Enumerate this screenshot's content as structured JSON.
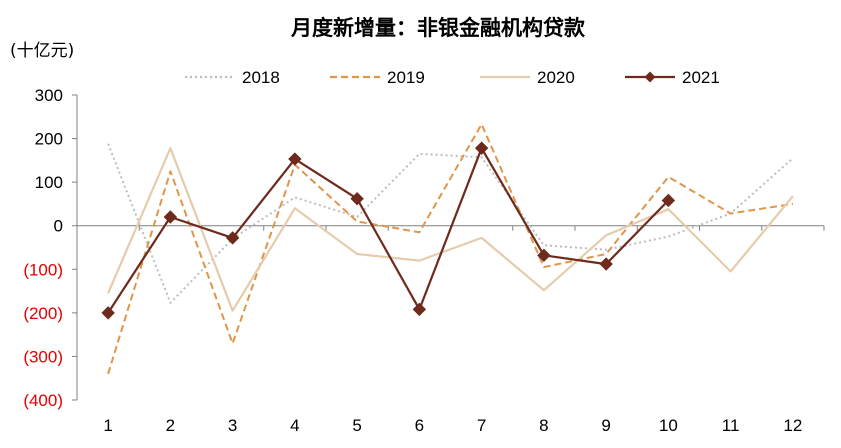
{
  "chart_data": {
    "type": "line",
    "title": "月度新增量：非银金融机构贷款",
    "ylabel": "(十亿元)",
    "xlabel": "",
    "categories": [
      "1",
      "2",
      "3",
      "4",
      "5",
      "6",
      "7",
      "8",
      "9",
      "10",
      "11",
      "12"
    ],
    "ylim": [
      -400,
      300
    ],
    "yticks": [
      300,
      200,
      100,
      0,
      -100,
      -200,
      -300,
      -400
    ],
    "ytick_labels": [
      "300",
      "200",
      "100",
      "0",
      "(100)",
      "(200)",
      "(300)",
      "(400)"
    ],
    "negative_tick_color": "#e60000",
    "positive_tick_color": "#000000",
    "legend_position": "top",
    "series": [
      {
        "name": "2018",
        "color": "#bdbdbd",
        "style": "dotted",
        "marker": "none",
        "values": [
          188,
          -177,
          -30,
          65,
          20,
          165,
          157,
          -45,
          -55,
          -25,
          28,
          155
        ]
      },
      {
        "name": "2019",
        "color": "#e0954a",
        "style": "dashed",
        "marker": "none",
        "values": [
          -340,
          125,
          -270,
          140,
          10,
          -15,
          233,
          -95,
          -65,
          112,
          28,
          50
        ]
      },
      {
        "name": "2020",
        "color": "#e5ccad",
        "style": "solid",
        "marker": "none",
        "values": [
          -155,
          178,
          -195,
          40,
          -65,
          -80,
          -28,
          -148,
          -22,
          38,
          -105,
          68
        ]
      },
      {
        "name": "2021",
        "color": "#6e2a1c",
        "style": "solid",
        "marker": "diamond",
        "values": [
          -200,
          20,
          -28,
          153,
          62,
          -192,
          178,
          -68,
          -88,
          58,
          null,
          null
        ]
      }
    ]
  }
}
